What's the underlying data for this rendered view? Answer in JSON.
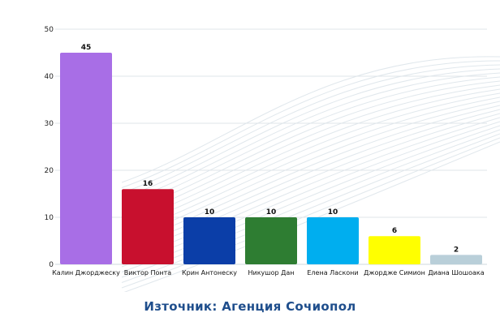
{
  "chart_data": {
    "type": "bar",
    "categories": [
      "Калин Джорджеску",
      "Виктор Понта",
      "Крин Антонеску",
      "Никушор Дан",
      "Елена Ласкони",
      "Джордже Симион",
      "Диана Шошоака"
    ],
    "values": [
      45,
      16,
      10,
      10,
      10,
      6,
      2
    ],
    "colors": [
      "#a86ee6",
      "#c8102e",
      "#0b3ea8",
      "#2e7d32",
      "#00aeef",
      "#ffff00",
      "#b9cfd9"
    ],
    "title": "",
    "xlabel": "",
    "ylabel": "",
    "ylim": [
      0,
      50
    ],
    "yticks": [
      0,
      10,
      20,
      30,
      40,
      50
    ],
    "grid": true,
    "legend": "none",
    "source": "Източник: Агенция Сочиопол"
  }
}
